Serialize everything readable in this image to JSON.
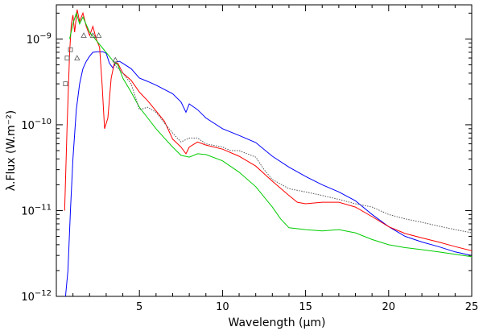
{
  "chart_data": {
    "type": "line",
    "title": "",
    "xlabel": "Wavelength (μm)",
    "ylabel": "λ.Flux (W.m⁻²)",
    "xlim": [
      0,
      25
    ],
    "ylim": [
      1e-12,
      2.5e-09
    ],
    "yscale": "log",
    "grid": false,
    "xticks": [
      5,
      10,
      15,
      20,
      25
    ],
    "yticks": [
      {
        "value": 1e-12,
        "mantissa": "10",
        "exp": "−12"
      },
      {
        "value": 1e-11,
        "mantissa": "10",
        "exp": "−11"
      },
      {
        "value": 1e-10,
        "mantissa": "10",
        "exp": "−10"
      },
      {
        "value": 1e-09,
        "mantissa": "10",
        "exp": "−9"
      }
    ],
    "series": [
      {
        "color": "#0000ff",
        "points": [
          [
            0.55,
            1e-12
          ],
          [
            0.7,
            2e-12
          ],
          [
            0.85,
            1e-11
          ],
          [
            1.0,
            4e-11
          ],
          [
            1.2,
            1.5e-10
          ],
          [
            1.4,
            3e-10
          ],
          [
            1.6,
            4.5e-10
          ],
          [
            1.8,
            5.5e-10
          ],
          [
            2.0,
            6.3e-10
          ],
          [
            2.2,
            7e-10
          ],
          [
            2.5,
            7.1e-10
          ],
          [
            2.8,
            7.1e-10
          ],
          [
            3.0,
            6.8e-10
          ],
          [
            3.2,
            5.2e-10
          ],
          [
            3.4,
            4.6e-10
          ],
          [
            3.6,
            5.4e-10
          ],
          [
            3.8,
            5.5e-10
          ],
          [
            4.0,
            5.2e-10
          ],
          [
            4.5,
            4.5e-10
          ],
          [
            5.0,
            3.5e-10
          ],
          [
            5.5,
            3.2e-10
          ],
          [
            6.0,
            2.9e-10
          ],
          [
            7.0,
            2.3e-10
          ],
          [
            7.5,
            1.85e-10
          ],
          [
            7.8,
            1.4e-10
          ],
          [
            8.0,
            1.75e-10
          ],
          [
            8.5,
            1.5e-10
          ],
          [
            9.0,
            1.2e-10
          ],
          [
            10.0,
            9e-11
          ],
          [
            11.0,
            7.5e-11
          ],
          [
            12.0,
            6.2e-11
          ],
          [
            13.0,
            4.3e-11
          ],
          [
            14.0,
            3.2e-11
          ],
          [
            15.0,
            2.5e-11
          ],
          [
            16.0,
            2e-11
          ],
          [
            17.0,
            1.65e-11
          ],
          [
            18.0,
            1.3e-11
          ],
          [
            19.0,
            9e-12
          ],
          [
            20.0,
            6.5e-12
          ],
          [
            21.0,
            5e-12
          ],
          [
            22.0,
            4.3e-12
          ],
          [
            23.0,
            3.8e-12
          ],
          [
            24.0,
            3.3e-12
          ],
          [
            25.0,
            3e-12
          ]
        ]
      },
      {
        "color": "#ff0000",
        "points": [
          [
            0.5,
            1e-11
          ],
          [
            0.65,
            1e-10
          ],
          [
            0.8,
            7e-10
          ],
          [
            0.9,
            1.5e-09
          ],
          [
            1.0,
            1.9e-09
          ],
          [
            1.1,
            1.2e-09
          ],
          [
            1.25,
            2.2e-09
          ],
          [
            1.4,
            1.6e-09
          ],
          [
            1.6,
            2e-09
          ],
          [
            1.8,
            1.4e-09
          ],
          [
            2.0,
            1.1e-09
          ],
          [
            2.2,
            1.4e-09
          ],
          [
            2.4,
            1e-09
          ],
          [
            2.6,
            8e-10
          ],
          [
            2.75,
            3e-10
          ],
          [
            2.9,
            9e-11
          ],
          [
            3.1,
            1.2e-10
          ],
          [
            3.3,
            3.5e-10
          ],
          [
            3.5,
            5.3e-10
          ],
          [
            3.7,
            5.2e-10
          ],
          [
            4.0,
            4e-10
          ],
          [
            4.5,
            3.3e-10
          ],
          [
            5.0,
            2.4e-10
          ],
          [
            5.5,
            1.9e-10
          ],
          [
            6.0,
            1.45e-10
          ],
          [
            6.5,
            1.1e-10
          ],
          [
            7.0,
            6.8e-11
          ],
          [
            7.3,
            6e-11
          ],
          [
            7.5,
            5.5e-11
          ],
          [
            7.8,
            4.6e-11
          ],
          [
            8.0,
            5.5e-11
          ],
          [
            8.5,
            6.3e-11
          ],
          [
            9.0,
            5.8e-11
          ],
          [
            10.0,
            5.2e-11
          ],
          [
            11.0,
            4.3e-11
          ],
          [
            12.0,
            3.3e-11
          ],
          [
            13.0,
            2.2e-11
          ],
          [
            14.0,
            1.5e-11
          ],
          [
            14.5,
            1.25e-11
          ],
          [
            15.0,
            1.2e-11
          ],
          [
            16.0,
            1.25e-11
          ],
          [
            17.0,
            1.25e-11
          ],
          [
            18.0,
            1.1e-11
          ],
          [
            19.0,
            8.5e-12
          ],
          [
            20.0,
            6.5e-12
          ],
          [
            21.0,
            5.4e-12
          ],
          [
            22.0,
            4.8e-12
          ],
          [
            23.0,
            4.3e-12
          ],
          [
            24.0,
            3.8e-12
          ],
          [
            25.0,
            3.4e-12
          ]
        ]
      },
      {
        "color": "#00cc00",
        "points": [
          [
            0.8,
            1e-09
          ],
          [
            1.0,
            1.5e-09
          ],
          [
            1.2,
            2e-09
          ],
          [
            1.4,
            1.5e-09
          ],
          [
            1.6,
            1.8e-09
          ],
          [
            2.0,
            1.2e-09
          ],
          [
            3.5,
            5.3e-10
          ],
          [
            3.7,
            5e-10
          ],
          [
            4.0,
            3.5e-10
          ],
          [
            4.5,
            2.4e-10
          ],
          [
            5.0,
            1.6e-10
          ],
          [
            5.5,
            1.2e-10
          ],
          [
            6.0,
            9e-11
          ],
          [
            6.5,
            7e-11
          ],
          [
            7.0,
            5.5e-11
          ],
          [
            7.5,
            4.4e-11
          ],
          [
            8.0,
            4.2e-11
          ],
          [
            8.5,
            4.6e-11
          ],
          [
            9.0,
            4.5e-11
          ],
          [
            10.0,
            3.8e-11
          ],
          [
            11.0,
            2.8e-11
          ],
          [
            12.0,
            1.9e-11
          ],
          [
            13.0,
            1.1e-11
          ],
          [
            13.5,
            8e-12
          ],
          [
            14.0,
            6.3e-12
          ],
          [
            15.0,
            6e-12
          ],
          [
            16.0,
            5.8e-12
          ],
          [
            17.0,
            6e-12
          ],
          [
            18.0,
            5.5e-12
          ],
          [
            19.0,
            4.6e-12
          ],
          [
            20.0,
            4e-12
          ],
          [
            21.0,
            3.7e-12
          ],
          [
            22.0,
            3.5e-12
          ],
          [
            23.0,
            3.3e-12
          ],
          [
            24.0,
            3.1e-12
          ],
          [
            25.0,
            2.9e-12
          ]
        ]
      },
      {
        "color": "#555555",
        "dash": true,
        "points": [
          [
            3.5,
            5e-10
          ],
          [
            4.0,
            4e-10
          ],
          [
            4.5,
            3e-10
          ],
          [
            5.0,
            1.5e-10
          ],
          [
            5.5,
            1.6e-10
          ],
          [
            6.0,
            1.4e-10
          ],
          [
            6.5,
            1.05e-10
          ],
          [
            7.0,
            8e-11
          ],
          [
            7.5,
            6.3e-11
          ],
          [
            8.0,
            7e-11
          ],
          [
            8.5,
            7e-11
          ],
          [
            9.0,
            6e-11
          ],
          [
            10.0,
            5.5e-11
          ],
          [
            10.5,
            5e-11
          ],
          [
            11.0,
            5e-11
          ],
          [
            12.0,
            4.2e-11
          ],
          [
            12.5,
            3e-11
          ],
          [
            13.0,
            2.3e-11
          ],
          [
            14.0,
            1.8e-11
          ],
          [
            15.0,
            1.65e-11
          ],
          [
            16.0,
            1.5e-11
          ],
          [
            17.0,
            1.35e-11
          ],
          [
            18.0,
            1.2e-11
          ],
          [
            19.0,
            1.1e-11
          ],
          [
            20.0,
            9e-12
          ],
          [
            21.0,
            8e-12
          ],
          [
            22.0,
            7.3e-12
          ],
          [
            23.0,
            6.6e-12
          ],
          [
            24.0,
            6e-12
          ],
          [
            25.0,
            5.5e-12
          ]
        ]
      }
    ],
    "markers": [
      {
        "symbol": "square",
        "points": [
          [
            0.55,
            3e-10
          ],
          [
            0.65,
            6e-10
          ],
          [
            0.85,
            7.5e-10
          ]
        ]
      },
      {
        "symbol": "triangle",
        "points": [
          [
            1.25,
            6e-10
          ],
          [
            1.65,
            1.1e-09
          ],
          [
            2.2,
            1.1e-09
          ],
          [
            2.55,
            1.1e-09
          ],
          [
            3.55,
            5.7e-10
          ]
        ]
      }
    ]
  }
}
